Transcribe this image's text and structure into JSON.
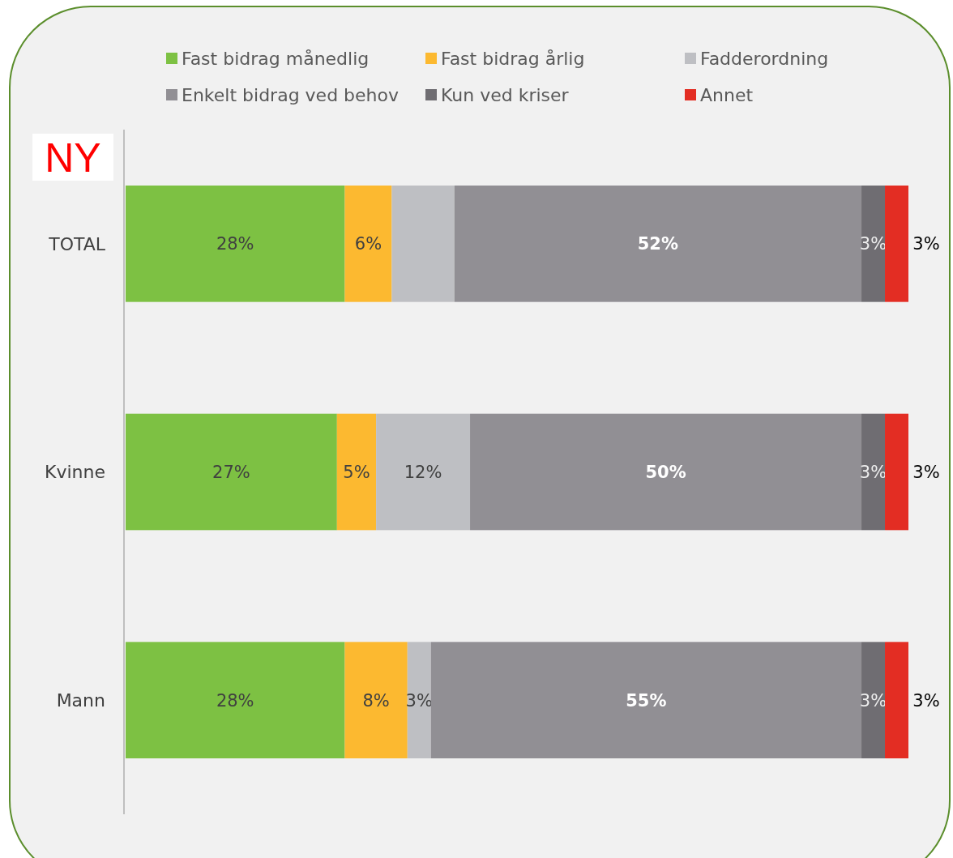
{
  "chart_data": {
    "type": "bar",
    "orientation": "horizontal",
    "stacked": true,
    "categories": [
      "TOTAL",
      "Kvinne",
      "Mann"
    ],
    "series": [
      {
        "name": "Fast bidrag månedlig",
        "color": "#7dc143",
        "values": [
          28,
          27,
          28
        ],
        "value_labels": [
          "28%",
          "27%",
          "28%"
        ]
      },
      {
        "name": "Fast bidrag årlig",
        "color": "#fcb930",
        "values": [
          6,
          5,
          8
        ],
        "value_labels": [
          "6%",
          "5%",
          "8%"
        ]
      },
      {
        "name": "Fadderordning",
        "color": "#bebfc3",
        "values": [
          8,
          12,
          3
        ],
        "value_labels": [
          null,
          "12%",
          "3%"
        ]
      },
      {
        "name": "Enkelt bidrag ved behov",
        "color": "#918f94",
        "values": [
          52,
          50,
          55
        ],
        "value_labels": [
          "52%",
          "50%",
          "55%"
        ]
      },
      {
        "name": "Kun ved kriser",
        "color": "#6f6d72",
        "values": [
          3,
          3,
          3
        ],
        "value_labels": [
          "3%",
          "3%",
          "3%"
        ]
      },
      {
        "name": "Annet",
        "color": "#e32d23",
        "values": [
          3,
          3,
          3
        ],
        "value_labels": [
          "3%",
          "3%",
          "3%"
        ]
      }
    ],
    "tick_labels": "y",
    "legend": "top",
    "annotations": [
      "NY"
    ]
  }
}
